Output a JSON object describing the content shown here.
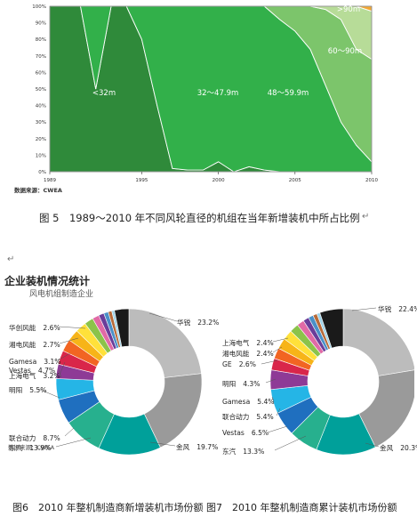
{
  "figure5": {
    "caption": "图 5　1989～2010 年不同风轮直径的机组在当年新增装机中所占比例",
    "source": "数据来源：CWEA",
    "chart_data": {
      "type": "area",
      "stacked": true,
      "x": [
        1989,
        1990,
        1991,
        1992,
        1993,
        1994,
        1995,
        1996,
        1997,
        1998,
        1999,
        2000,
        2001,
        2002,
        2003,
        2004,
        2005,
        2006,
        2007,
        2008,
        2009,
        2010
      ],
      "x_tick_labels": [
        "1989",
        "1995",
        "2000",
        "2005",
        "2010"
      ],
      "y_tick_labels": [
        "0%",
        "10%",
        "20%",
        "30%",
        "40%",
        "50%",
        "60%",
        "70%",
        "80%",
        "90%",
        "100%"
      ],
      "ylim": [
        0,
        100
      ],
      "series": [
        {
          "name": "<32m",
          "color": "#2f8a3a",
          "values": [
            100,
            100,
            100,
            50,
            100,
            100,
            80,
            40,
            2,
            1,
            1,
            6,
            0,
            3,
            1,
            0,
            0,
            0,
            0,
            0,
            0,
            0
          ]
        },
        {
          "name": "32～47.9m",
          "color": "#32b04a",
          "values": [
            0,
            0,
            0,
            50,
            0,
            0,
            20,
            60,
            98,
            99,
            99,
            94,
            100,
            97,
            99,
            92,
            85,
            74,
            52,
            30,
            16,
            6
          ]
        },
        {
          "name": "48～59.9m",
          "color": "#7cc56b",
          "values": [
            0,
            0,
            0,
            0,
            0,
            0,
            0,
            0,
            0,
            0,
            0,
            0,
            0,
            0,
            0,
            8,
            15,
            26,
            46,
            62,
            58,
            62
          ]
        },
        {
          "name": "60～90m",
          "color": "#b7dc98",
          "values": [
            0,
            0,
            0,
            0,
            0,
            0,
            0,
            0,
            0,
            0,
            0,
            0,
            0,
            0,
            0,
            0,
            0,
            0,
            2,
            8,
            26,
            29
          ]
        },
        {
          "name": ">90m",
          "color": "#f2a733",
          "values": [
            0,
            0,
            0,
            0,
            0,
            0,
            0,
            0,
            0,
            0,
            0,
            0,
            0,
            0,
            0,
            0,
            0,
            0,
            0,
            0,
            0,
            3
          ]
        }
      ]
    }
  },
  "para_mark": "↵",
  "panel": {
    "title": "企业装机情况统计",
    "subtitle": "风电机组制造企业",
    "source": "数据来源：CWEA"
  },
  "figure6": {
    "chart_data": {
      "type": "pie",
      "slices": [
        {
          "name": "华锐",
          "value": 23.2,
          "color": "#bcbcbc",
          "label": "华锐",
          "pct": "23.2%"
        },
        {
          "name": "金风",
          "value": 19.7,
          "color": "#9a9a9a",
          "label": "金风",
          "pct": "19.7%"
        },
        {
          "name": "东汽",
          "value": 13.9,
          "color": "#00a09a",
          "label": "东汽",
          "pct": "13.9%"
        },
        {
          "name": "联合动力",
          "value": 8.7,
          "color": "#27b08e",
          "label": "联合动力",
          "pct": "8.7%"
        },
        {
          "name": "明阳",
          "value": 5.5,
          "color": "#1f6fbf",
          "label": "明阳",
          "pct": "5.5%"
        },
        {
          "name": "Vestas",
          "value": 4.7,
          "color": "#25b5e6",
          "label": "Vestas",
          "pct": "4.7%"
        },
        {
          "name": "上海电气",
          "value": 3.2,
          "color": "#8e3a96",
          "label": "上海电气",
          "pct": "3.2%"
        },
        {
          "name": "Gamesa",
          "value": 3.1,
          "color": "#d9264a",
          "label": "Gamesa",
          "pct": "3.1%"
        },
        {
          "name": "湘电风能",
          "value": 2.7,
          "color": "#f26522",
          "label": "湘电风能",
          "pct": "2.7%"
        },
        {
          "name": "华创风能",
          "value": 2.6,
          "color": "#f7b418",
          "label": "华创风能",
          "pct": "2.6%"
        },
        {
          "name": "",
          "value": 2.4,
          "color": "#ffe13a"
        },
        {
          "name": "",
          "value": 2.0,
          "color": "#8bc34a"
        },
        {
          "name": "",
          "value": 1.5,
          "color": "#e16aa6"
        },
        {
          "name": "",
          "value": 1.2,
          "color": "#6a3d9a"
        },
        {
          "name": "",
          "value": 1.0,
          "color": "#4a90c8"
        },
        {
          "name": "",
          "value": 0.8,
          "color": "#b86b39"
        },
        {
          "name": "",
          "value": 0.6,
          "color": "#9fd3e8"
        },
        {
          "name": "",
          "value": 3.2,
          "color": "#1a1a1a"
        }
      ]
    },
    "caption": "图6　2010 年整机制造商新增装机市场份额"
  },
  "figure7": {
    "chart_data": {
      "type": "pie",
      "slices": [
        {
          "name": "华锐",
          "value": 22.4,
          "color": "#bcbcbc",
          "label": "华锐",
          "pct": "22.4%"
        },
        {
          "name": "金风",
          "value": 20.3,
          "color": "#9a9a9a",
          "label": "金风",
          "pct": "20.3%"
        },
        {
          "name": "东汽",
          "value": 13.3,
          "color": "#00a09a",
          "label": "东汽",
          "pct": "13.3%"
        },
        {
          "name": "Vestas",
          "value": 6.5,
          "color": "#27b08e",
          "label": "Vestas",
          "pct": "6.5%"
        },
        {
          "name": "联合动力",
          "value": 5.4,
          "color": "#1f6fbf",
          "label": "联合动力",
          "pct": "5.4%"
        },
        {
          "name": "Gamesa",
          "value": 5.4,
          "color": "#25b5e6",
          "label": "Gamesa",
          "pct": "5.4%"
        },
        {
          "name": "明阳",
          "value": 4.3,
          "color": "#8e3a96",
          "label": "明阳",
          "pct": "4.3%"
        },
        {
          "name": "GE",
          "value": 2.6,
          "color": "#d9264a",
          "label": "GE",
          "pct": "2.6%"
        },
        {
          "name": "湘电风能",
          "value": 2.4,
          "color": "#f26522",
          "label": "湘电风能",
          "pct": "2.4%"
        },
        {
          "name": "上海电气",
          "value": 2.4,
          "color": "#f7b418",
          "label": "上海电气",
          "pct": "2.4%"
        },
        {
          "name": "",
          "value": 2.2,
          "color": "#ffe13a"
        },
        {
          "name": "",
          "value": 2.0,
          "color": "#8bc34a"
        },
        {
          "name": "",
          "value": 1.6,
          "color": "#e16aa6"
        },
        {
          "name": "",
          "value": 1.3,
          "color": "#6a3d9a"
        },
        {
          "name": "",
          "value": 1.1,
          "color": "#4a90c8"
        },
        {
          "name": "",
          "value": 0.9,
          "color": "#b86b39"
        },
        {
          "name": "",
          "value": 0.7,
          "color": "#9fd3e8"
        },
        {
          "name": "",
          "value": 5.2,
          "color": "#1a1a1a"
        }
      ]
    },
    "caption": "图7　2010 年整机制造商累计装机市场份额"
  }
}
